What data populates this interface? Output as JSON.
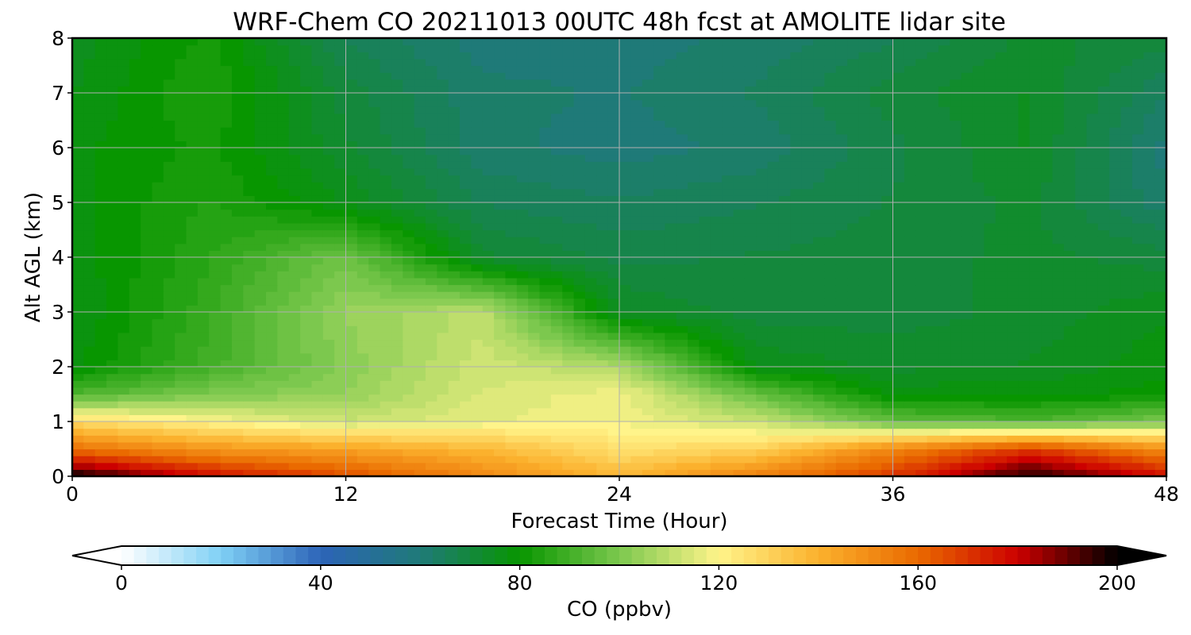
{
  "chart_data": {
    "type": "heatmap",
    "title": "WRF-Chem CO  20211013 00UTC 48h fcst at AMOLITE lidar site",
    "xlabel": "Forecast Time (Hour)",
    "ylabel": "Alt AGL (km)",
    "xlim": [
      0,
      48
    ],
    "ylim": [
      0,
      8
    ],
    "x_ticks": [
      0,
      12,
      24,
      36,
      48
    ],
    "y_ticks": [
      0,
      1,
      2,
      3,
      4,
      5,
      6,
      7,
      8
    ],
    "grid": true,
    "colorbar": {
      "label": "CO  (ppbv)",
      "range": [
        0,
        200
      ],
      "ticks": [
        0,
        40,
        80,
        120,
        160,
        200
      ],
      "extend": "both",
      "orientation": "horizontal",
      "position": "bottom",
      "colors": [
        "#ffffff",
        "#7fd0f5",
        "#2d64b8",
        "#1f7a78",
        "#089600",
        "#7cc84e",
        "#fff48a",
        "#fbb12d",
        "#ea6a00",
        "#cc0000",
        "#000000"
      ]
    },
    "x": [
      0,
      6,
      12,
      18,
      24,
      30,
      36,
      42,
      48
    ],
    "y": [
      0,
      0.5,
      1,
      1.5,
      2,
      3,
      4,
      5,
      6,
      7,
      8
    ],
    "z": [
      [
        200,
        178,
        166,
        152,
        138,
        154,
        170,
        198,
        178
      ],
      [
        158,
        148,
        144,
        138,
        126,
        130,
        152,
        170,
        150
      ],
      [
        128,
        120,
        112,
        116,
        118,
        112,
        96,
        92,
        100
      ],
      [
        92,
        100,
        104,
        114,
        118,
        96,
        78,
        78,
        80
      ],
      [
        78,
        90,
        102,
        113,
        108,
        76,
        73,
        74,
        78
      ],
      [
        76,
        88,
        104,
        110,
        74,
        70,
        70,
        72,
        76
      ],
      [
        77,
        86,
        98,
        72,
        68,
        69,
        70,
        72,
        70
      ],
      [
        78,
        84,
        76,
        66,
        64,
        66,
        69,
        72,
        62
      ],
      [
        78,
        82,
        72,
        62,
        60,
        62,
        68,
        74,
        60
      ],
      [
        76,
        84,
        70,
        62,
        61,
        64,
        70,
        74,
        64
      ],
      [
        75,
        82,
        66,
        60,
        60,
        62,
        66,
        72,
        70
      ]
    ]
  }
}
